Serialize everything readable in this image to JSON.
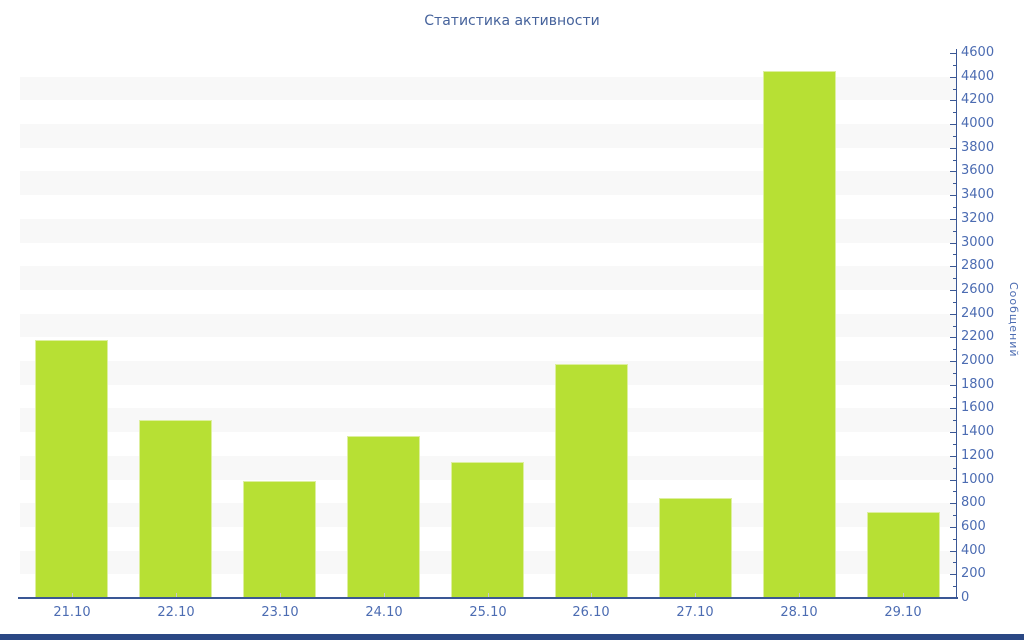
{
  "title": "Статистика активности",
  "colors": {
    "bar": "#b7e034",
    "bar_border": "#ddef9f",
    "stripe": "#f8f8f8",
    "axis_line": "#3a5795",
    "tick_label": "#4c6cb2",
    "title_text": "#46639c",
    "bottom_bar": "#2a4784"
  },
  "chart_data": {
    "type": "bar",
    "title": "Статистика активности",
    "categories": [
      "21.10",
      "22.10",
      "23.10",
      "24.10",
      "25.10",
      "26.10",
      "27.10",
      "28.10",
      "29.10"
    ],
    "values": [
      2180,
      1500,
      990,
      1370,
      1150,
      1975,
      845,
      4445,
      730
    ],
    "xlabel": "",
    "ylabel": "Сообщений",
    "ylim": [
      0,
      4600
    ],
    "ytick_step": 200,
    "minor_ytick_step": 100,
    "yaxis_side": "right",
    "grid": "alternating-horizontal-bands",
    "legend": "none"
  }
}
